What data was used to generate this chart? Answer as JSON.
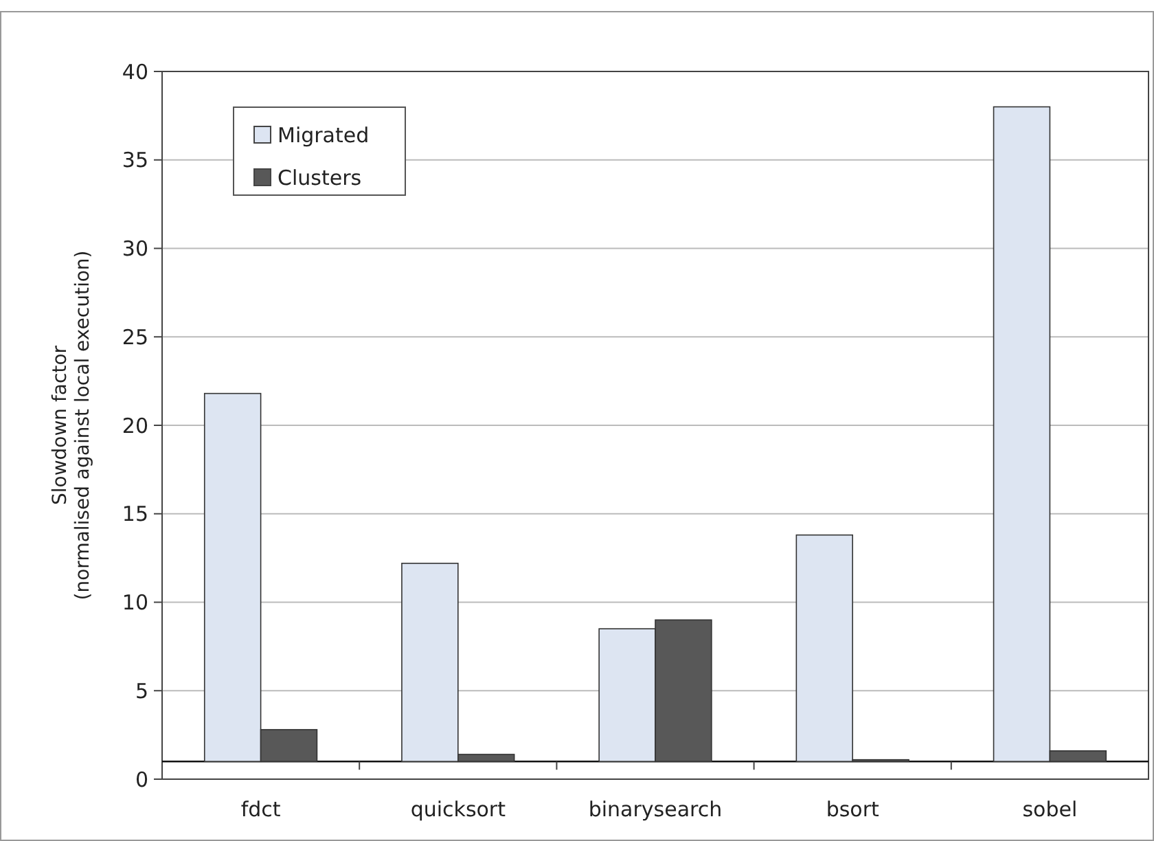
{
  "chart_data": {
    "type": "bar",
    "ylabel": "Slowdown factor\n(normalised against local execution)",
    "categories": [
      "fdct",
      "quicksort",
      "binarysearch",
      "bsort",
      "sobel"
    ],
    "ref_lines": [
      {
        "axis": "y",
        "value": 1,
        "color": "#111111"
      }
    ],
    "series": [
      {
        "name": "Migrated",
        "color": "#dde5f2",
        "base": [
          1,
          1,
          1,
          1,
          1
        ],
        "values": [
          20.8,
          11.2,
          7.5,
          12.8,
          37
        ]
      },
      {
        "name": "Clusters",
        "color": "#585858",
        "base": [
          1,
          1,
          1,
          1,
          1
        ],
        "values": [
          1.8,
          0.4,
          8.0,
          0.1,
          0.6
        ]
      }
    ],
    "ylim": [
      0,
      40
    ],
    "yticks": [
      0,
      5,
      10,
      15,
      20,
      25,
      30,
      35,
      40
    ],
    "grid": "y",
    "legend": "top left"
  }
}
